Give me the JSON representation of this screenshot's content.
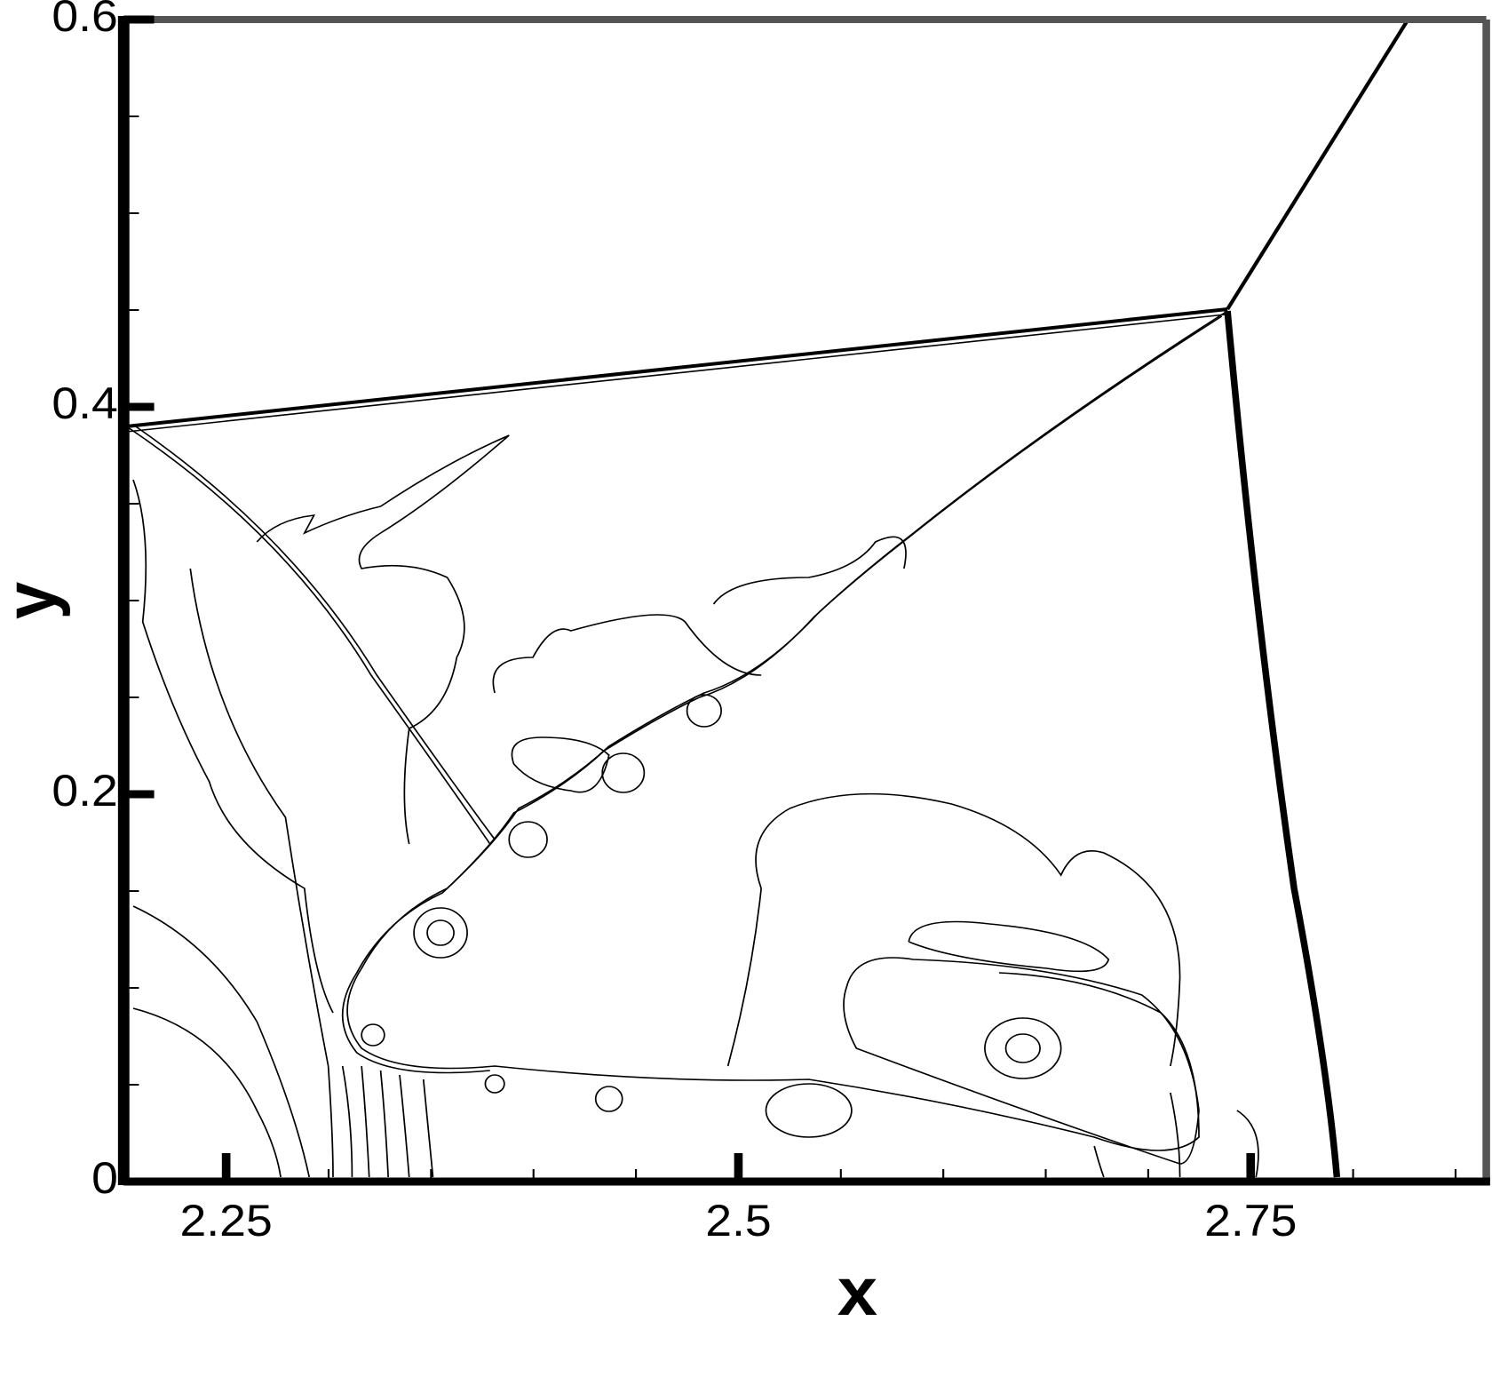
{
  "chart_data": {
    "type": "contour",
    "x_label": "x",
    "y_label": "y",
    "xlim": [
      2.2,
      2.865
    ],
    "ylim": [
      0,
      0.6
    ],
    "xticks": [
      2.25,
      2.5,
      2.75
    ],
    "yticks": [
      0,
      0.2,
      0.4,
      0.6
    ],
    "xminorticks": [
      2.3,
      2.35,
      2.4,
      2.45,
      2.55,
      2.6,
      2.65,
      2.7,
      2.8,
      2.85
    ],
    "yminorticks": [
      0.05,
      0.1,
      0.15,
      0.25,
      0.3,
      0.35,
      0.45,
      0.5,
      0.55
    ]
  }
}
